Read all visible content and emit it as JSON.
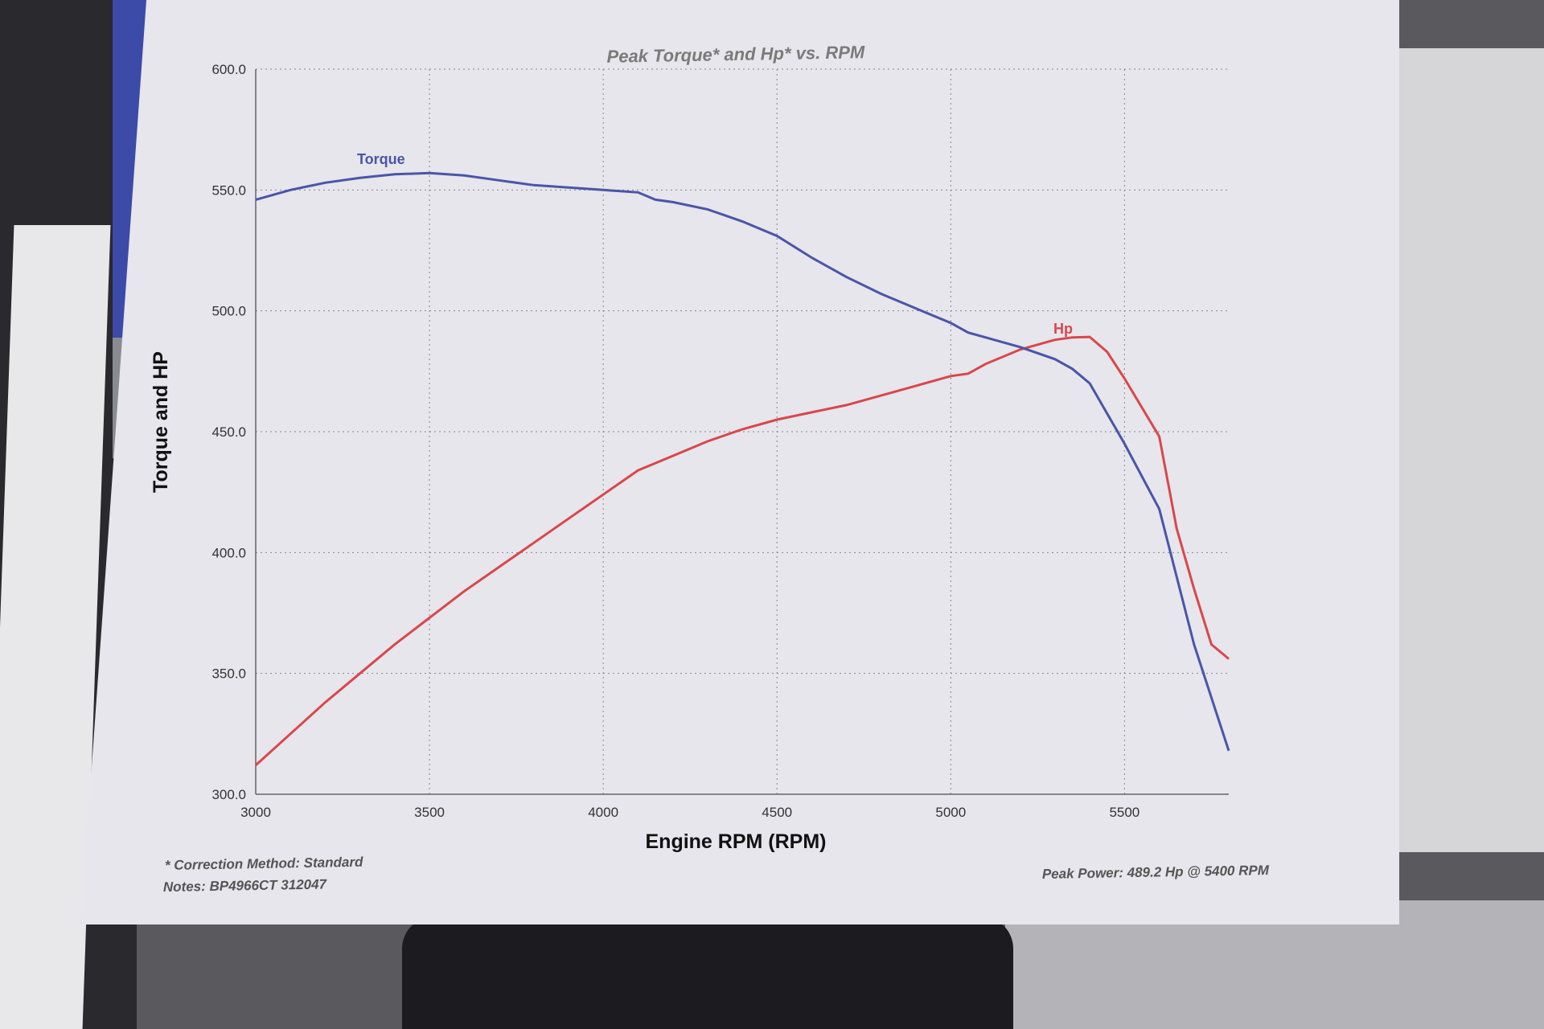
{
  "colors": {
    "torque": "#4a55a8",
    "hp": "#d9474a",
    "grid": "#888888",
    "paper": "#e6e6ec"
  },
  "chart_data": {
    "type": "line",
    "title": "Peak Torque* and Hp* vs. RPM",
    "xlabel": "Engine RPM (RPM)",
    "ylabel": "Torque and HP",
    "xlim": [
      3000,
      5800
    ],
    "ylim": [
      300,
      600
    ],
    "x_ticks": [
      "3000",
      "3500",
      "4000",
      "4500",
      "5000",
      "5500"
    ],
    "y_ticks": [
      "300.0",
      "350.0",
      "400.0",
      "450.0",
      "500.0",
      "550.0",
      "600.0"
    ],
    "grid": true,
    "series": [
      {
        "name": "Torque",
        "x": [
          3000,
          3100,
          3200,
          3300,
          3400,
          3500,
          3600,
          3700,
          3800,
          3900,
          4000,
          4100,
          4150,
          4200,
          4300,
          4400,
          4500,
          4600,
          4700,
          4800,
          4900,
          5000,
          5050,
          5100,
          5200,
          5300,
          5350,
          5400,
          5500,
          5600,
          5650,
          5700,
          5800
        ],
        "y": [
          546,
          550,
          553,
          555,
          556.5,
          557,
          556,
          554,
          552,
          551,
          550,
          549,
          546,
          545,
          542,
          537,
          531,
          522,
          514,
          507,
          501,
          495,
          491,
          489,
          485,
          480,
          476,
          470,
          445,
          418,
          390,
          362,
          318
        ]
      },
      {
        "name": "Hp",
        "x": [
          3000,
          3100,
          3200,
          3300,
          3400,
          3500,
          3600,
          3700,
          3800,
          3900,
          4000,
          4100,
          4150,
          4200,
          4300,
          4400,
          4500,
          4600,
          4700,
          4800,
          4900,
          5000,
          5050,
          5100,
          5200,
          5300,
          5350,
          5400,
          5450,
          5500,
          5600,
          5650,
          5700,
          5750,
          5800
        ],
        "y": [
          312,
          325,
          338,
          350,
          362,
          373,
          384,
          394,
          404,
          414,
          424,
          434,
          437,
          440,
          446,
          451,
          455,
          458,
          461,
          465,
          469,
          473,
          474,
          478,
          484,
          488,
          489,
          489.2,
          483,
          472,
          448,
          410,
          385,
          362,
          356
        ]
      }
    ],
    "notes": {
      "correction": "* Correction Method: Standard",
      "notes_line": "Notes: BP4966CT 312047",
      "peak_power": "Peak Power: 489.2 Hp @ 5400 RPM"
    }
  }
}
